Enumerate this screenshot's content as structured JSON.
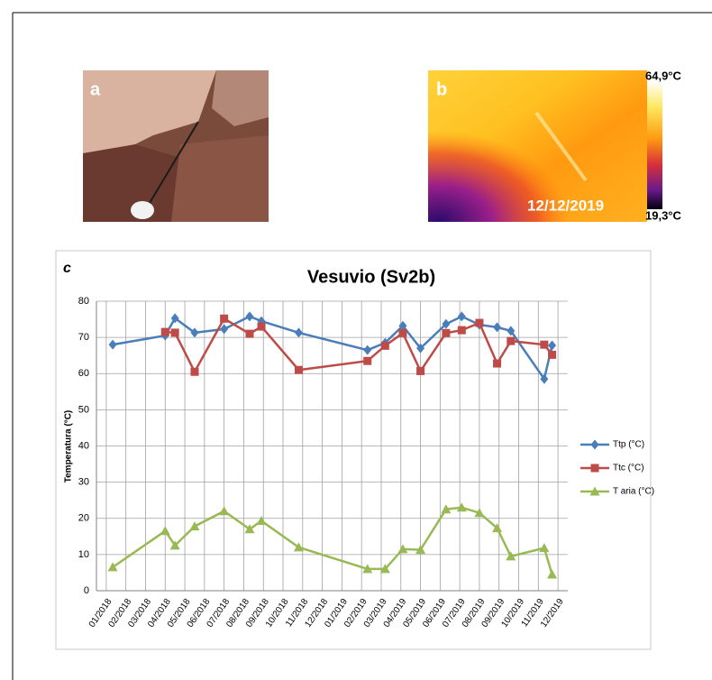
{
  "panels": {
    "a": "a",
    "b": "b",
    "b_max": "64,9°C",
    "b_min": "19,3°C",
    "b_date": "12/12/2019"
  },
  "chart_data": {
    "type": "line",
    "panel_label": "c",
    "title": "Vesuvio (Sv2b)",
    "y_label": "Temperatura (°C)",
    "xlim": [
      -0.5,
      23.5
    ],
    "xticks": [
      {
        "value": 0,
        "label": "01/2018"
      },
      {
        "value": 1,
        "label": "02/2018"
      },
      {
        "value": 2,
        "label": "03/2018"
      },
      {
        "value": 3,
        "label": "04/2018"
      },
      {
        "value": 4,
        "label": "05/2018"
      },
      {
        "value": 5,
        "label": "06/2018"
      },
      {
        "value": 6,
        "label": "07/2018"
      },
      {
        "value": 7,
        "label": "08/2018"
      },
      {
        "value": 8,
        "label": "09/2018"
      },
      {
        "value": 9,
        "label": "10/2018"
      },
      {
        "value": 10,
        "label": "11/2018"
      },
      {
        "value": 11,
        "label": "12/2018"
      },
      {
        "value": 12,
        "label": "01/2019"
      },
      {
        "value": 13,
        "label": "02/2019"
      },
      {
        "value": 14,
        "label": "03/2019"
      },
      {
        "value": 15,
        "label": "04/2019"
      },
      {
        "value": 16,
        "label": "05/2019"
      },
      {
        "value": 17,
        "label": "06/2019"
      },
      {
        "value": 18,
        "label": "07/2019"
      },
      {
        "value": 19,
        "label": "08/2019"
      },
      {
        "value": 20,
        "label": "09/2019"
      },
      {
        "value": 21,
        "label": "10/2019"
      },
      {
        "value": 22,
        "label": "11/2019"
      },
      {
        "value": 23,
        "label": "12/2019"
      }
    ],
    "ylim": [
      0,
      80
    ],
    "yticks": [
      0,
      10,
      20,
      30,
      40,
      50,
      60,
      70,
      80
    ],
    "grid": true,
    "series": [
      {
        "name": "Ttp (°C)",
        "color": "#4a7ebb",
        "marker": "diamond",
        "x": [
          0.33,
          3.0,
          3.5,
          4.5,
          6.0,
          7.3,
          7.9,
          9.8,
          13.3,
          14.2,
          15.1,
          16.0,
          17.3,
          18.1,
          19.0,
          19.9,
          20.6,
          22.3,
          22.7
        ],
        "values": [
          68,
          70.5,
          75.3,
          71.3,
          72.3,
          75.8,
          74.5,
          71.3,
          66.5,
          68.5,
          73.2,
          67,
          73.7,
          75.8,
          73.5,
          72.8,
          71.8,
          58.5,
          67.8
        ]
      },
      {
        "name": "Ttc (°C)",
        "color": "#be4b48",
        "marker": "square",
        "x": [
          3.0,
          3.5,
          4.5,
          6.0,
          7.3,
          7.9,
          9.8,
          13.3,
          14.2,
          15.1,
          16.0,
          17.3,
          18.1,
          19.0,
          19.9,
          20.6,
          22.3,
          22.7
        ],
        "values": [
          71.5,
          71.3,
          60.5,
          75.2,
          71,
          73,
          61,
          63.5,
          67.7,
          71.2,
          60.7,
          71.2,
          72,
          74,
          62.8,
          69,
          68,
          65.2
        ]
      },
      {
        "name": "T aria (°C)",
        "color": "#98b954",
        "marker": "triangle",
        "x": [
          0.33,
          3.0,
          3.5,
          4.5,
          6.0,
          7.3,
          7.9,
          9.8,
          13.3,
          14.2,
          15.1,
          16.0,
          17.3,
          18.1,
          19.0,
          19.9,
          20.6,
          22.3,
          22.7
        ],
        "values": [
          6.5,
          16.5,
          12.5,
          17.8,
          22,
          17,
          19.3,
          12,
          6,
          6,
          11.5,
          11.3,
          22.5,
          23,
          21.5,
          17.3,
          9.5,
          11.8,
          4.5
        ]
      }
    ]
  }
}
